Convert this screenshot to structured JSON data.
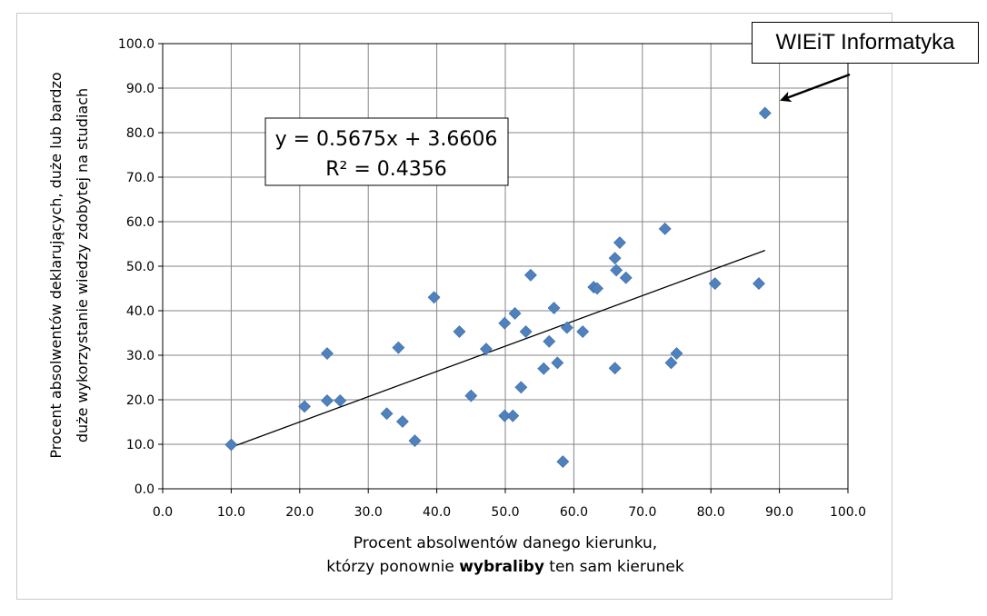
{
  "chart_data": {
    "type": "scatter",
    "xlabel_line1": "Procent absolwentów danego kierunku,",
    "xlabel_line2_pre": "którzy ponownie ",
    "xlabel_line2_bold": "wybraliby",
    "xlabel_line2_post": " ten sam kierunek",
    "ylabel_line1": "Procent absolwentów deklarujących, duże lub bardzo",
    "ylabel_line2": "duże wykorzystanie wiedzy zdobytej na studiach",
    "xlim": [
      0,
      100
    ],
    "ylim": [
      0,
      100
    ],
    "xticks": [
      "0.0",
      "10.0",
      "20.0",
      "30.0",
      "40.0",
      "50.0",
      "60.0",
      "70.0",
      "80.0",
      "90.0",
      "100.0"
    ],
    "yticks": [
      "0.0",
      "10.0",
      "20.0",
      "30.0",
      "40.0",
      "50.0",
      "60.0",
      "70.0",
      "80.0",
      "90.0",
      "100.0"
    ],
    "grid": true,
    "marker_color": "#4f81bd",
    "trendline": {
      "slope": 0.5675,
      "intercept": 3.6606,
      "x_range": [
        10,
        87.9
      ],
      "equation_text": "y = 0.5675x + 3.6606",
      "r2_text": "R² = 0.4356"
    },
    "points": [
      {
        "x": 10.0,
        "y": 9.9
      },
      {
        "x": 20.7,
        "y": 18.5
      },
      {
        "x": 24.0,
        "y": 30.4
      },
      {
        "x": 24.0,
        "y": 19.8
      },
      {
        "x": 25.9,
        "y": 19.8
      },
      {
        "x": 32.7,
        "y": 16.9
      },
      {
        "x": 34.4,
        "y": 31.7
      },
      {
        "x": 35.0,
        "y": 15.1
      },
      {
        "x": 36.8,
        "y": 10.8
      },
      {
        "x": 39.6,
        "y": 43.0
      },
      {
        "x": 43.3,
        "y": 35.3
      },
      {
        "x": 45.0,
        "y": 20.9
      },
      {
        "x": 47.2,
        "y": 31.4
      },
      {
        "x": 49.9,
        "y": 37.2
      },
      {
        "x": 49.9,
        "y": 16.4
      },
      {
        "x": 51.1,
        "y": 16.4
      },
      {
        "x": 51.4,
        "y": 39.4
      },
      {
        "x": 52.3,
        "y": 22.8
      },
      {
        "x": 53.0,
        "y": 35.3
      },
      {
        "x": 53.7,
        "y": 48.0
      },
      {
        "x": 55.6,
        "y": 27.0
      },
      {
        "x": 56.4,
        "y": 33.1
      },
      {
        "x": 57.1,
        "y": 40.6
      },
      {
        "x": 57.6,
        "y": 28.3
      },
      {
        "x": 58.4,
        "y": 6.1
      },
      {
        "x": 59.0,
        "y": 36.2
      },
      {
        "x": 61.3,
        "y": 35.3
      },
      {
        "x": 62.9,
        "y": 45.3
      },
      {
        "x": 63.4,
        "y": 45.0
      },
      {
        "x": 66.0,
        "y": 51.8
      },
      {
        "x": 66.2,
        "y": 49.1
      },
      {
        "x": 66.7,
        "y": 55.3
      },
      {
        "x": 66.0,
        "y": 27.1
      },
      {
        "x": 67.6,
        "y": 47.4
      },
      {
        "x": 73.3,
        "y": 58.4
      },
      {
        "x": 74.2,
        "y": 28.3
      },
      {
        "x": 75.0,
        "y": 30.4
      },
      {
        "x": 80.6,
        "y": 46.1
      },
      {
        "x": 87.0,
        "y": 46.1
      },
      {
        "x": 87.9,
        "y": 84.4
      }
    ]
  },
  "annotation": {
    "label": "WIEiT Informatyka",
    "point_x": 87.9,
    "point_y": 84.4
  }
}
